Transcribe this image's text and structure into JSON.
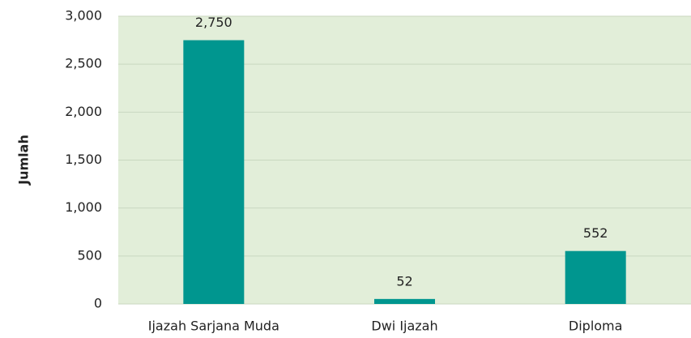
{
  "chart_data": {
    "type": "bar",
    "y_label": "Jumlah",
    "categories": [
      "Ijazah Sarjana Muda",
      "Dwi Ijazah",
      "Diploma"
    ],
    "values": [
      2750,
      52,
      552
    ],
    "value_labels": [
      "2,750",
      "52",
      "552"
    ],
    "color": "#00968f",
    "plot_background": "#e2eed9",
    "ylim": [
      0,
      3000
    ],
    "yticks": [
      0,
      500,
      {
        "value": 1000,
        "label": "1,000"
      },
      {
        "value": 1500,
        "label": "1,500"
      },
      {
        "value": 2000,
        "label": "2,000"
      },
      {
        "value": 2500,
        "label": "2,500"
      },
      {
        "value": 3000,
        "label": "3,000"
      }
    ],
    "grid": true
  }
}
